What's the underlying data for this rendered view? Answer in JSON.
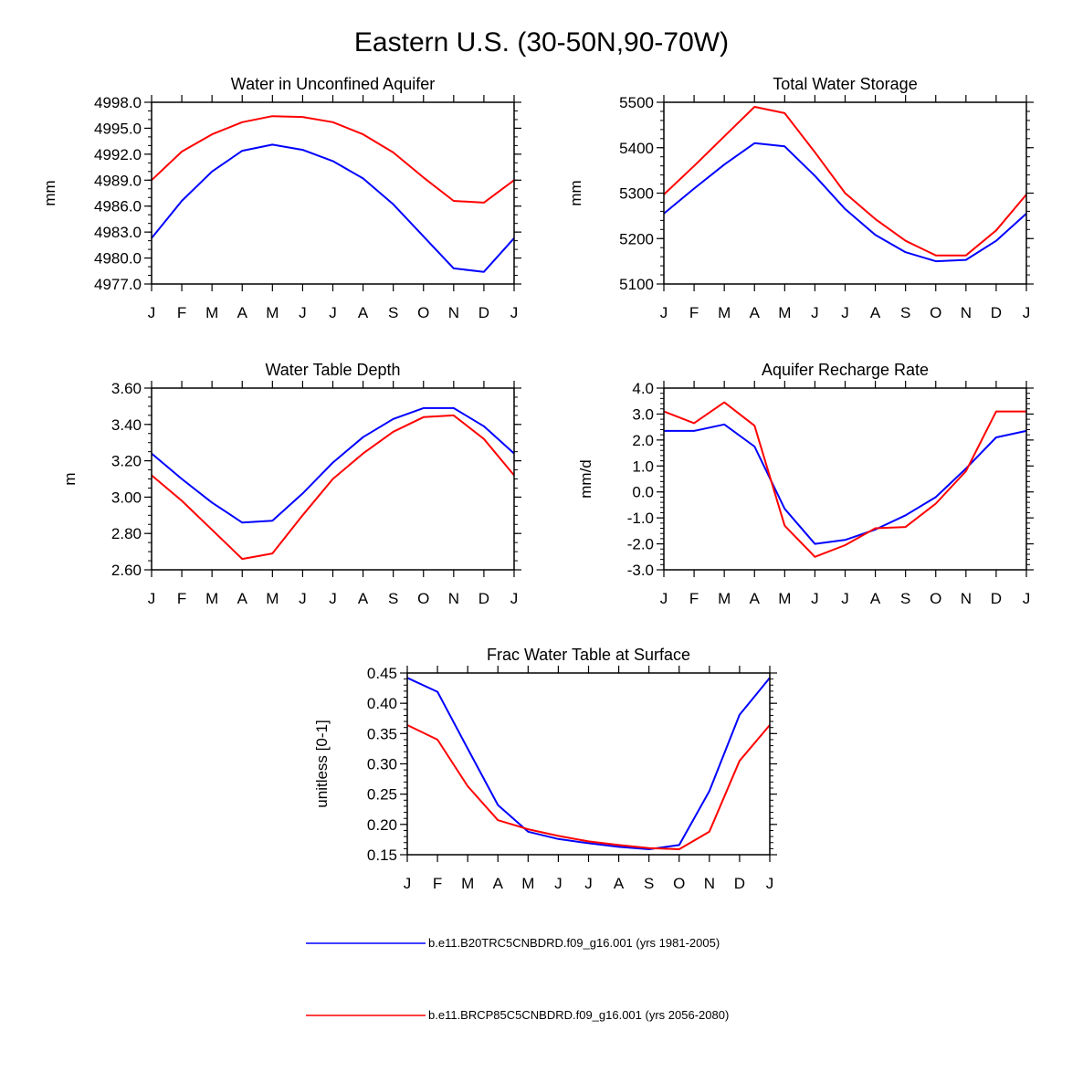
{
  "figure": {
    "title": "Eastern U.S. (30-50N,90-70W)"
  },
  "colors": {
    "series_1": "#0000ff",
    "series_2": "#ff0000",
    "axis": "#000000"
  },
  "legend": [
    {
      "label": "b.e11.B20TRC5CNBDRD.f09_g16.001 (yrs 1981-2005)",
      "color": "#0000ff"
    },
    {
      "label": "b.e11.BRCP85C5CNBDRD.f09_g16.001 (yrs 2056-2080)",
      "color": "#ff0000"
    }
  ],
  "chart_data": [
    {
      "type": "line",
      "title": "Water in Unconfined Aquifer",
      "xlabel": "",
      "ylabel": "mm",
      "categories": [
        "J",
        "F",
        "M",
        "A",
        "M",
        "J",
        "J",
        "A",
        "S",
        "O",
        "N",
        "D",
        "J"
      ],
      "ylim": [
        4977.0,
        4998.0
      ],
      "yticks": [
        4977.0,
        4980.0,
        4983.0,
        4986.0,
        4989.0,
        4992.0,
        4995.0,
        4998.0
      ],
      "ytick_labels": [
        "4977.0",
        "4980.0",
        "4983.0",
        "4986.0",
        "4989.0",
        "4992.0",
        "4995.0",
        "4998.0"
      ],
      "ytick_minor": 1.0,
      "series": [
        {
          "values": [
            4982.3,
            4986.6,
            4990.0,
            4992.4,
            4993.1,
            4992.5,
            4991.2,
            4989.2,
            4986.2,
            4982.5,
            4978.8,
            4978.4,
            4982.3
          ]
        },
        {
          "values": [
            4989.0,
            4992.3,
            4994.3,
            4995.7,
            4996.4,
            4996.3,
            4995.7,
            4994.3,
            4992.2,
            4989.3,
            4986.6,
            4986.4,
            4989.0
          ]
        }
      ]
    },
    {
      "type": "line",
      "title": "Total Water Storage",
      "xlabel": "",
      "ylabel": "mm",
      "categories": [
        "J",
        "F",
        "M",
        "A",
        "M",
        "J",
        "J",
        "A",
        "S",
        "O",
        "N",
        "D",
        "J"
      ],
      "ylim": [
        5100,
        5500
      ],
      "yticks": [
        5100,
        5200,
        5300,
        5400,
        5500
      ],
      "ytick_labels": [
        "5100",
        "5200",
        "5300",
        "5400",
        "5500"
      ],
      "ytick_minor": 20,
      "series": [
        {
          "values": [
            5255,
            5310,
            5363,
            5410,
            5403,
            5338,
            5265,
            5208,
            5170,
            5150,
            5153,
            5195,
            5255
          ]
        },
        {
          "values": [
            5297,
            5360,
            5425,
            5490,
            5476,
            5390,
            5300,
            5243,
            5195,
            5163,
            5163,
            5218,
            5297
          ]
        }
      ]
    },
    {
      "type": "line",
      "title": "Water Table Depth",
      "xlabel": "",
      "ylabel": "m",
      "categories": [
        "J",
        "F",
        "M",
        "A",
        "M",
        "J",
        "J",
        "A",
        "S",
        "O",
        "N",
        "D",
        "J"
      ],
      "ylim": [
        2.6,
        3.6
      ],
      "yticks": [
        2.6,
        2.8,
        3.0,
        3.2,
        3.4,
        3.6
      ],
      "ytick_labels": [
        "2.60",
        "2.80",
        "3.00",
        "3.20",
        "3.40",
        "3.60"
      ],
      "ytick_minor": 0.05,
      "series": [
        {
          "values": [
            3.24,
            3.1,
            2.97,
            2.86,
            2.87,
            3.02,
            3.19,
            3.33,
            3.43,
            3.49,
            3.49,
            3.39,
            3.24
          ]
        },
        {
          "values": [
            3.12,
            2.98,
            2.82,
            2.66,
            2.69,
            2.9,
            3.1,
            3.24,
            3.36,
            3.44,
            3.45,
            3.32,
            3.12
          ]
        }
      ]
    },
    {
      "type": "line",
      "title": "Aquifer Recharge Rate",
      "xlabel": "",
      "ylabel": "mm/d",
      "categories": [
        "J",
        "F",
        "M",
        "A",
        "M",
        "J",
        "J",
        "A",
        "S",
        "O",
        "N",
        "D",
        "J"
      ],
      "ylim": [
        -3.0,
        4.0
      ],
      "yticks": [
        -3.0,
        -2.0,
        -1.0,
        0.0,
        1.0,
        2.0,
        3.0,
        4.0
      ],
      "ytick_labels": [
        "-3.0",
        "-2.0",
        "-1.0",
        "0.0",
        "1.0",
        "2.0",
        "3.0",
        "4.0"
      ],
      "ytick_minor": 0.2,
      "series": [
        {
          "values": [
            2.35,
            2.35,
            2.6,
            1.75,
            -0.65,
            -2.0,
            -1.85,
            -1.45,
            -0.9,
            -0.2,
            0.9,
            2.1,
            2.35
          ]
        },
        {
          "values": [
            3.1,
            2.65,
            3.45,
            2.55,
            -1.3,
            -2.5,
            -2.05,
            -1.4,
            -1.35,
            -0.45,
            0.8,
            3.1,
            3.1
          ]
        }
      ]
    },
    {
      "type": "line",
      "title": "Frac Water Table at Surface",
      "xlabel": "",
      "ylabel": "unitless [0-1]",
      "categories": [
        "J",
        "F",
        "M",
        "A",
        "M",
        "J",
        "J",
        "A",
        "S",
        "O",
        "N",
        "D",
        "J"
      ],
      "ylim": [
        0.15,
        0.45
      ],
      "yticks": [
        0.15,
        0.2,
        0.25,
        0.3,
        0.35,
        0.4,
        0.45
      ],
      "ytick_labels": [
        "0.15",
        "0.20",
        "0.25",
        "0.30",
        "0.35",
        "0.40",
        "0.45"
      ],
      "ytick_minor": 0.01,
      "series": [
        {
          "values": [
            0.442,
            0.419,
            0.325,
            0.232,
            0.188,
            0.176,
            0.169,
            0.163,
            0.159,
            0.166,
            0.255,
            0.381,
            0.442
          ]
        },
        {
          "values": [
            0.364,
            0.34,
            0.263,
            0.207,
            0.192,
            0.181,
            0.172,
            0.166,
            0.161,
            0.159,
            0.188,
            0.305,
            0.364
          ]
        }
      ]
    }
  ]
}
